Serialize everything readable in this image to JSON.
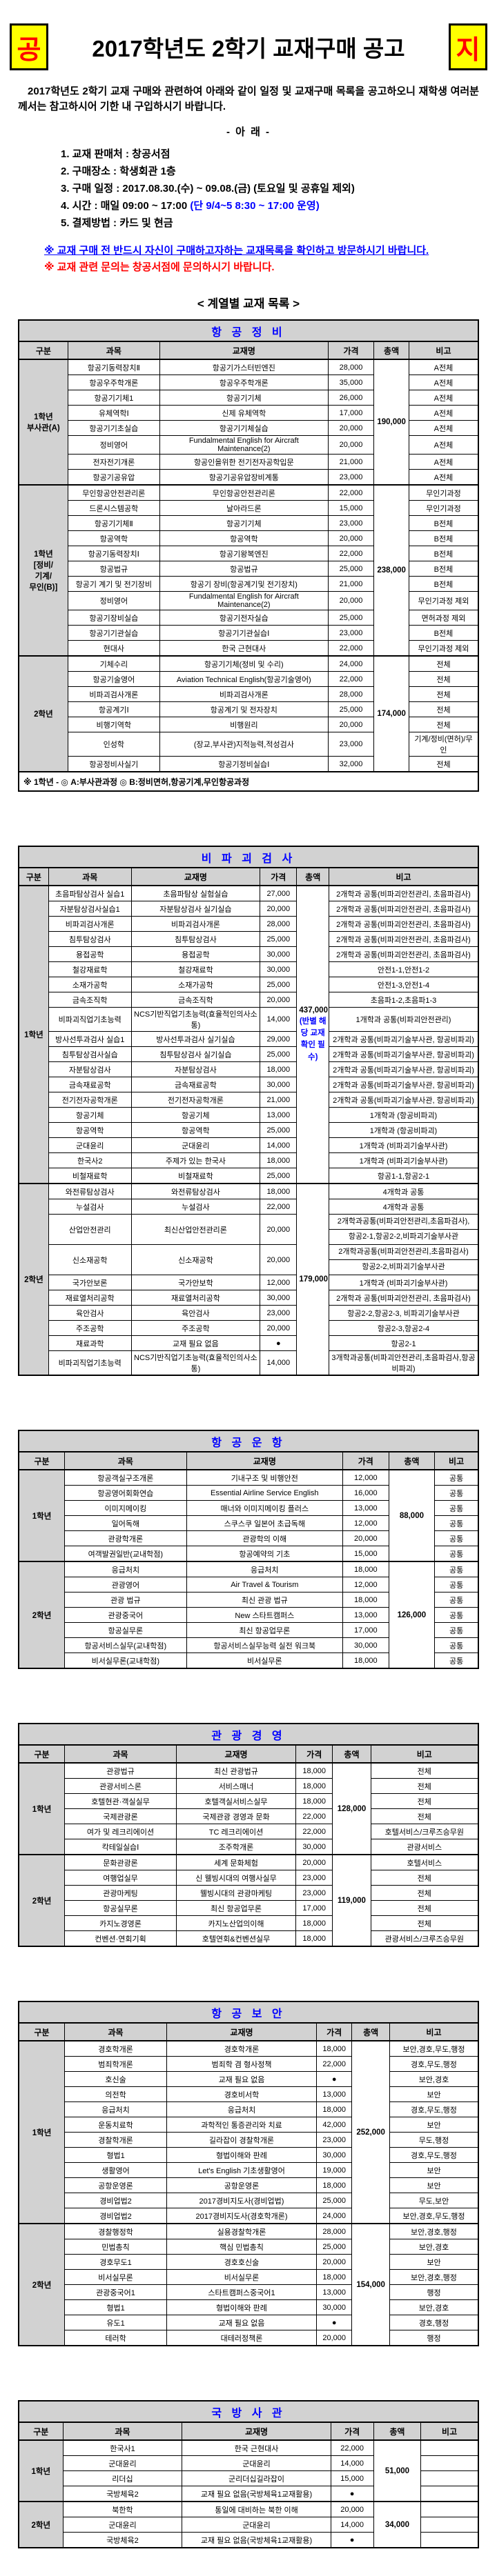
{
  "colors": {
    "accent_blue": "#0000ff",
    "accent_red": "#ff0000",
    "badge_yellow": "#ffff00",
    "header_gray": "#d2d2d2"
  },
  "page": {
    "badge_left": "공",
    "badge_right": "지",
    "title": "2017학년도 2학기 교재구매 공고",
    "intro": "2017학년도 2학기 교재 구매와 관련하여 아래와 같이 일정 및 교재구매 목록을 공고하오니 재학생 여러분께서는 참고하시어 기한 내 구입하시기 바랍니다.",
    "below_label": "- 아   래 -",
    "notice_items": [
      [
        {
          "t": "1. 교재 판매처 : 창공서점"
        }
      ],
      [
        {
          "t": "2. 구매장소 : 학생회관 1층"
        }
      ],
      [
        {
          "t": "3. 구매 일정 : 2017.08.30.(수) ~ 09.08.(금) (토요일 및 공휴일 제외)"
        }
      ],
      [
        {
          "t": "4. 시간 : 매일 09:00 ~ 17:00 "
        },
        {
          "t": "(단 9/4~5 8:30 ~ 17:00 운영)",
          "c": "blue"
        }
      ],
      [
        {
          "t": "5. 결제방법 : 카드 및 현금"
        }
      ]
    ],
    "warning_blue": "※ 교재 구매 전 반드시 자신이 구매하고자하는 교재목록을 확인하고 방문하시기 바랍니다.",
    "warning_red": "※ 교재 관련 문의는 창공서점에 문의하시기 바랍니다.",
    "list_title": "< 계열별 교재 목록 >"
  },
  "table_headers": [
    "구분",
    "과목",
    "교재명",
    "가격",
    "총액",
    "비고"
  ],
  "tables": [
    {
      "title": "항 공 정 비",
      "widths": [
        10.7,
        20,
        36.6,
        10,
        7.6,
        15.1
      ],
      "groups": [
        {
          "label": "1학년\n부사관(A)",
          "total": "190,000",
          "rows": [
            [
              "항공기동력장치Ⅱ",
              "항공기가스터빈엔진",
              "28,000",
              "A전체"
            ],
            [
              "항공우주학개론",
              "항공우주학개론",
              "35,000",
              "A전체"
            ],
            [
              "항공기기체1",
              "항공기기체",
              "26,000",
              "A전체"
            ],
            [
              "유체역학Ⅰ",
              "신제  유체역학",
              "17,000",
              "A전체"
            ],
            [
              "항공기기초실습",
              "항공기기체실습",
              "20,000",
              "A전체"
            ],
            [
              "정비영어",
              "Fundalmental English for Aircraft Maintenance(2)",
              "20,000",
              "A전체"
            ],
            [
              "전자전기개론",
              "항공인을위한  전기전자공학입문",
              "21,000",
              "A전체"
            ],
            [
              "항공기공유압",
              "항공기공유압장비계통",
              "23,000",
              "A전체"
            ]
          ]
        },
        {
          "label": "1학년\n[정비/\n기계/\n무인(B)]",
          "total": "238,000",
          "rows": [
            [
              "무인항공안전관리론",
              "무인항공안전관리론",
              "22,000",
              "무인기과정"
            ],
            [
              "드론시스템공학",
              "날아라드론",
              "15,000",
              "무인기과정"
            ],
            [
              "항공기기체Ⅱ",
              "항공기기체",
              "23,000",
              "B전체"
            ],
            [
              "항공역학",
              "항공역학",
              "20,000",
              "B전체"
            ],
            [
              "항공기동력장치Ⅰ",
              "항공기왕복엔진",
              "22,000",
              "B전체"
            ],
            [
              "항공법규",
              "항공법규",
              "25,000",
              "B전체"
            ],
            [
              "항공기 계기 및 전기장비",
              "항공기  장비(항공계기및 전기장치)",
              "21,000",
              "B전체"
            ],
            [
              "정비영어",
              "Fundalmental English for Aircraft Maintenance(2)",
              "20,000",
              "무인기과정  제외"
            ],
            [
              "항공기장비실습",
              "항공기전자실습",
              "25,000",
              "면허과정  제외"
            ],
            [
              "항공기기관실습",
              "항공기기관실습Ⅰ",
              "23,000",
              "B전체"
            ],
            [
              "현대사",
              "한국  근현대사",
              "22,000",
              "무인기과정  제외"
            ]
          ]
        },
        {
          "label": "2학년",
          "total": "174,000",
          "rows": [
            [
              "기체수리",
              "항공기기체(정비  및 수리)",
              "24,000",
              "전체"
            ],
            [
              "항공기술영어",
              "Aviation Technical English(항공기술영어)",
              "22,000",
              "전체"
            ],
            [
              "비파괴검사개론",
              "비파괴검사개론",
              "28,000",
              "전체"
            ],
            [
              "항공계기Ⅰ",
              "항공계기  및 전자장치",
              "25,000",
              "전체"
            ],
            [
              "비행기역학",
              "비행원리",
              "20,000",
              "전체"
            ],
            [
              "인성학",
              "(장교,부사관)지적능력,적성검사",
              "23,000",
              "기계/정비(면허)/무인"
            ],
            [
              "항공정비사실기",
              "항공기정비실습Ⅰ",
              "32,000",
              "전체"
            ]
          ]
        }
      ],
      "footnote": "※ 1학년 - ◎ A:부사관과정   ◎ B:정비면허,항공기계,무인항공과정"
    },
    {
      "title": "비 파 괴 검 사",
      "widths": [
        6.5,
        18,
        28,
        8,
        7,
        32.5
      ],
      "groups": [
        {
          "label": "1학년",
          "total": {
            "amount": "437,000",
            "note": "(반별 해당 교재 확인 필수)"
          },
          "rows": [
            [
              "초음파탐상검사 실습1",
              "초음파탐상 실험실습",
              "27,000",
              "2개학과 공통(비파괴안전관리, 초음파검사)"
            ],
            [
              "자분탐상검사실습1",
              "자분탐상검사  실기실습",
              "20,000",
              "2개학과 공통(비파괴안전관리, 초음파검사)"
            ],
            [
              "비파괴검사개론",
              "비파괴검사개론",
              "28,000",
              "2개학과 공통(비파괴안전관리, 초음파검사)"
            ],
            [
              "침투탐상검사",
              "침투탐상검사",
              "25,000",
              "2개학과 공통(비파괴안전관리, 초음파검사)"
            ],
            [
              "용접공학",
              "용접공학",
              "30,000",
              "2개학과 공통(비파괴안전관리, 초음파검사)"
            ],
            [
              "철강재료학",
              "철강재료학",
              "30,000",
              "안전1-1,안전1-2"
            ],
            [
              "소재가공학",
              "소재가공학",
              "25,000",
              "안전1-3,안전1-4"
            ],
            [
              "금속조직학",
              "금속조직학",
              "20,000",
              "초음파1-2,초음파1-3"
            ],
            [
              "비파괴직업기초능력",
              "NCS기반직업기초능력(효율적인의사소통)",
              "14,000",
              "1개학과 공통(비파괴안전관리)"
            ],
            [
              "방사선투과검사 실습1",
              "방사선투과검사  실기실습",
              "29,000",
              "2개학과 공통(비파괴기술부사관, 항공비파괴)"
            ],
            [
              "침투탐상검사실습",
              "침투탐상검사  실기실습",
              "25,000",
              "2개학과 공통(비파괴기술부사관, 항공비파괴)"
            ],
            [
              "자분탐상검사",
              "자분탐상검사",
              "18,000",
              "2개학과 공통(비파괴기술부사관, 항공비파괴)"
            ],
            [
              "금속재료공학",
              "금속재료공학",
              "30,000",
              "2개학과 공통(비파괴기술부사관, 항공비파괴)"
            ],
            [
              "전기전자공학개론",
              "전기전자공학개론",
              "21,000",
              "2개학과 공통(비파괴기술부사관, 항공비파괴)"
            ],
            [
              "항공기체",
              "항공기체",
              "13,000",
              "1개학과 (항공비파괴)"
            ],
            [
              "항공역학",
              "항공역학",
              "25,000",
              "1개학과 (항공비파괴)"
            ],
            [
              "군대윤리",
              "군대윤리",
              "14,000",
              "1개학과 (비파괴기술부사관)"
            ],
            [
              "한국사2",
              "주제가  있는 한국사",
              "18,000",
              "1개학과 (비파괴기술부사관)"
            ],
            [
              "비철재료학",
              "비철재료학",
              "25,000",
              "항공1-1,항공2-1"
            ]
          ]
        },
        {
          "label": "2학년",
          "total": "179,000",
          "rows": [
            [
              "와전류탐상검사",
              "와전류탐상검사",
              "18,000",
              "4개학과 공통"
            ],
            [
              "누설검사",
              "누설검사",
              "22,000",
              "4개학과 공통"
            ],
            [
              "산업안전관리",
              "최신산업안전관리론",
              "20,000",
              [
                "2개학과공통(비파괴안전관리,초음파검사),",
                "항공2-1,항공2-2,비파괴기술부사관"
              ]
            ],
            [
              "신소재공학",
              "신소재공학",
              "20,000",
              [
                "2개학과공통(비파괴안전관리,초음파검사)",
                "항공2-2,비파괴기술부사관"
              ]
            ],
            [
              "국가안보론",
              "국가안보학",
              "12,000",
              "1개학과 (비파괴기술부사관)"
            ],
            [
              "재료열처리공학",
              "재료열처리공학",
              "30,000",
              "2개학과 공통(비파괴안전관리, 초음파검사)"
            ],
            [
              "육안검사",
              "육안검사",
              "23,000",
              "항공2-2,항공2-3,  비파괴기술부사관"
            ],
            [
              "주조공학",
              "주조공학",
              "20,000",
              "항공2-3,항공2-4"
            ],
            [
              "재료과학",
              "교재 필요 없음",
              "●",
              "항공2-1"
            ],
            [
              "비파괴직업기초능력",
              "NCS기반직업기초능력(효율적인의사소통)",
              "14,000",
              "3개학과공통(비파괴안전관리,초음파검사,항공비파괴)"
            ]
          ]
        }
      ]
    },
    {
      "title": "항 공 운 항",
      "widths": [
        10,
        26.5,
        34,
        10,
        10,
        9.5
      ],
      "groups": [
        {
          "label": "1학년",
          "total": "88,000",
          "rows": [
            [
              "항공객실구조개론",
              "기내구조  및 비행안전",
              "12,000",
              "공통"
            ],
            [
              "항공영어회화연습",
              "Essential Airline Service English",
              "16,000",
              "공통"
            ],
            [
              "이미지메이킹",
              "매너와  이미지메이킹 플러스",
              "13,000",
              "공통"
            ],
            [
              "일어독해",
              "스쿠스쿠  일본어 초급독해",
              "12,000",
              "공통"
            ],
            [
              "관광학개론",
              "관광학의  이해",
              "20,000",
              "공통"
            ],
            [
              "여객발권일반(교내학점)",
              "항공예약의  기초",
              "15,000",
              "공통"
            ]
          ]
        },
        {
          "label": "2학년",
          "total": "126,000",
          "rows": [
            [
              "응급처치",
              "응급처치",
              "18,000",
              "공통"
            ],
            [
              "관광영어",
              "Air Travel & Tourism",
              "12,000",
              "공통"
            ],
            [
              "관광 법규",
              "최신  관광 법규",
              "18,000",
              "공통"
            ],
            [
              "관광중국어",
              "New 스타트캠퍼스",
              "13,000",
              "공통"
            ],
            [
              "항공실무론",
              "최신  항공업무론",
              "17,000",
              "공통"
            ],
            [
              "항공서비스실무(교내학점)",
              "항공서비스실무능력  실전 워크북",
              "30,000",
              "공통"
            ],
            [
              "비서실무론(교내학점)",
              "비서실무론",
              "18,000",
              "공통"
            ]
          ]
        }
      ]
    },
    {
      "title": "관 광 경 영",
      "widths": [
        10,
        24.3,
        26,
        8,
        8.3,
        23.4
      ],
      "groups": [
        {
          "label": "1학년",
          "total": "128,000",
          "rows": [
            [
              "관광법규",
              "최신  관광법규",
              "18,000",
              "전체"
            ],
            [
              "관광서비스론",
              "서비스매너",
              "18,000",
              "전체"
            ],
            [
              "호텔현관·객실실무",
              "호텔객실서비스실무",
              "18,000",
              "전체"
            ],
            [
              "국제관광론",
              "국제관광  경영과 문화",
              "22,000",
              "전체"
            ],
            [
              "여가 및 레크리에이션",
              "TC 레크리에이션",
              "22,000",
              "호텔서비스/크루즈승무원"
            ],
            [
              "칵테일실습Ⅰ",
              "조주학개론",
              "30,000",
              "관광서비스"
            ]
          ]
        },
        {
          "label": "2학년",
          "total": "119,000",
          "rows": [
            [
              "문화관광론",
              "세계  문화체험",
              "20,000",
              "호텔서비스"
            ],
            [
              "여행업실무",
              "신  웰빙시대의 여행사실무",
              "23,000",
              "전체"
            ],
            [
              "관광마케팅",
              "웰빙시대의  관광마케팅",
              "23,000",
              "전체"
            ],
            [
              "항공실무론",
              "최신  항공업무론",
              "17,000",
              "전체"
            ],
            [
              "카지노경영론",
              "카지노산업의이해",
              "18,000",
              "전체"
            ],
            [
              "컨벤션·연회기획",
              "호텔연회&컨벤션실무",
              "18,000",
              "관광서비스/크루즈승무원"
            ]
          ]
        }
      ]
    },
    {
      "title": "항 공 보 안",
      "widths": [
        10,
        22.2,
        32.6,
        7.7,
        8.2,
        19.3
      ],
      "groups": [
        {
          "label": "1학년",
          "total": "252,000",
          "rows": [
            [
              "경호학개론",
              "경호학개론",
              "18,000",
              "보안,경호,무도,행정"
            ],
            [
              "범죄학개론",
              "범죄학  겸 형사정책",
              "22,000",
              "경호,무도,행정"
            ],
            [
              "호신술",
              "교재 필요 없음",
              "●",
              "보안,경호"
            ],
            [
              "의전학",
              "경호비서학",
              "13,000",
              "보안"
            ],
            [
              "응급처치",
              "응급처치",
              "18,000",
              "경호,무도,행정"
            ],
            [
              "운동치료학",
              "과학적인  통증관리와 치료",
              "42,000",
              "보안"
            ],
            [
              "경찰학개론",
              "길라잡이  경찰학개론",
              "23,000",
              "무도,행정"
            ],
            [
              "형법1",
              "형법이해와  판례",
              "30,000",
              "경호,무도,행정"
            ],
            [
              "생활영어",
              "Let's English 기초생활영어",
              "19,000",
              "보안"
            ],
            [
              "공항운영론",
              "공항운영론",
              "18,000",
              "보안"
            ],
            [
              "경비업법2",
              "2017경비지도사(경비업법)",
              "25,000",
              "무도,보안"
            ],
            [
              "경비업법2",
              "2017경비지도사(경호학개론)",
              "24,000",
              "보안,경호,무도,행정"
            ]
          ]
        },
        {
          "label": "2학년",
          "total": "154,000",
          "rows": [
            [
              "경찰행정학",
              "실용경찰학개론",
              "28,000",
              "보안,경호,행정"
            ],
            [
              "민법총칙",
              "핵심  민법총칙",
              "25,000",
              "보안,경호"
            ],
            [
              "경호무도1",
              "경호호신술",
              "20,000",
              "보안"
            ],
            [
              "비서실무론",
              "비서실무론",
              "18,000",
              "보안,경호,행정"
            ],
            [
              "관광중국어1",
              "스타트캠퍼스중국어1",
              "13,000",
              "행정"
            ],
            [
              "형법1",
              "형법이해와  판례",
              "30,000",
              "보안,경호"
            ],
            [
              "유도1",
              "교재 필요 없음",
              "●",
              "경호,행정"
            ],
            [
              "테러학",
              "대테러정책론",
              "20,000",
              "행정"
            ]
          ]
        }
      ]
    },
    {
      "title": "국 방 사 관",
      "widths": [
        10,
        27,
        33.6,
        9.7,
        10.7,
        13
      ],
      "groups": [
        {
          "label": "1학년",
          "total": "51,000",
          "rows": [
            [
              "한국사1",
              "한국  근현대사",
              "22,000",
              ""
            ],
            [
              "군대윤리",
              "군대윤리",
              "14,000",
              ""
            ],
            [
              "리더십",
              "군리더십길라잡이",
              "15,000",
              ""
            ],
            [
              "국방체육2",
              "교재  필요 없음(국방체육1교재활용)",
              "●",
              ""
            ]
          ]
        },
        {
          "label": "2학년",
          "total": "34,000",
          "rows": [
            [
              "북한학",
              "통일에 대비하는  북한 이해",
              "20,000",
              ""
            ],
            [
              "군대윤리",
              "군대윤리",
              "14,000",
              ""
            ],
            [
              "국방체육2",
              "교재  필요 없음(국방체육1교재활용)",
              "●",
              ""
            ]
          ]
        }
      ]
    }
  ]
}
